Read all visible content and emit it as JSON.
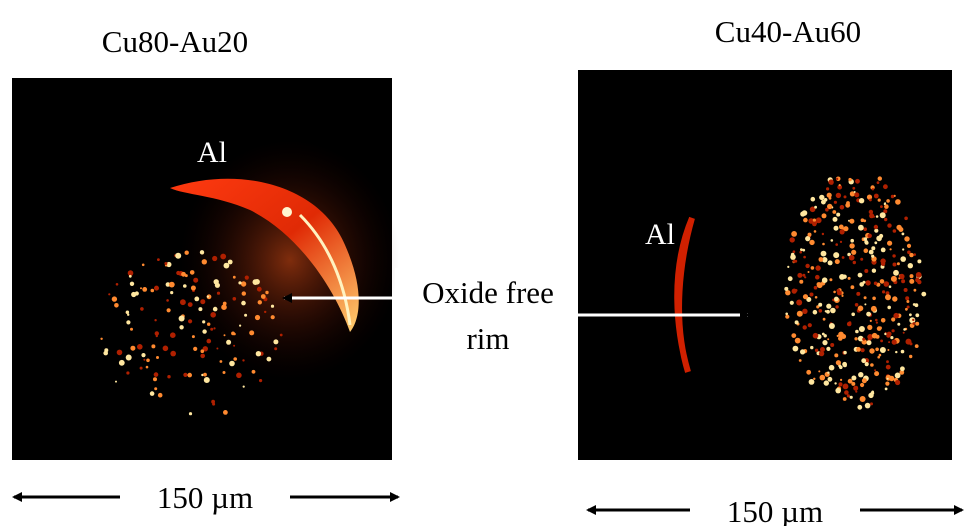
{
  "panels": [
    {
      "title": "Cu80-Au20",
      "element_label": "Al",
      "scale_label": "150 µm"
    },
    {
      "title": "Cu40-Au60",
      "element_label": "Al",
      "scale_label": "150 µm"
    }
  ],
  "annotation": {
    "line1": "Oxide free",
    "line2": "rim"
  }
}
